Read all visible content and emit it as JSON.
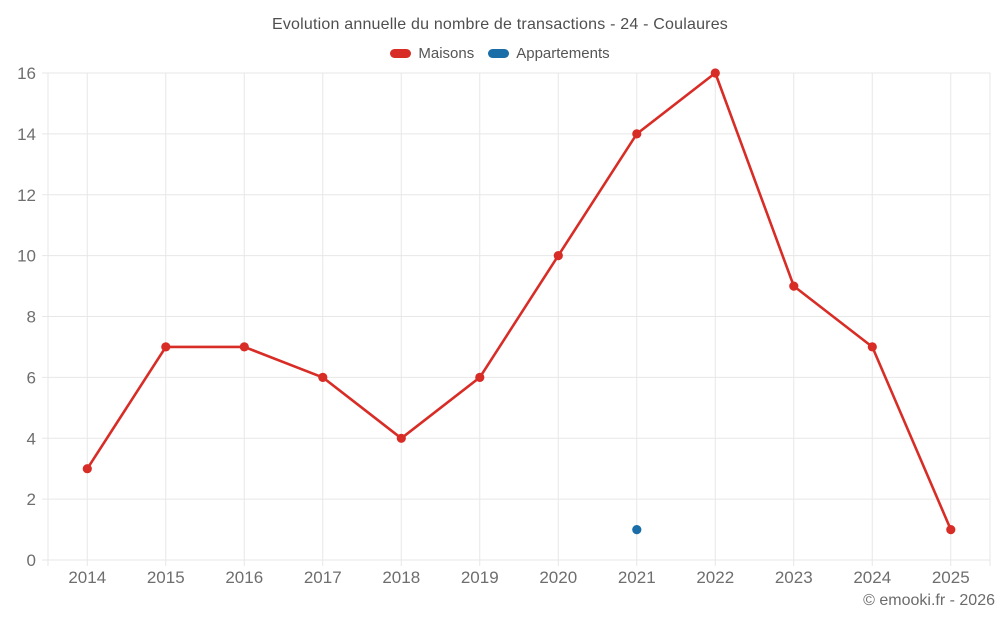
{
  "title": "Evolution annuelle du nombre de transactions - 24 - Coulaures",
  "footer": "© emooki.fr - 2026",
  "colors": {
    "maisons": "#d82d26",
    "appartements": "#1a6da6",
    "grid": "#e7e7e7",
    "axis_label": "#6e6e6e",
    "title_text": "#4f4f4f",
    "legend_text": "#555555",
    "footer_text": "#6b6b6b",
    "background": "#ffffff"
  },
  "chart_data": {
    "type": "line",
    "title": "Evolution annuelle du nombre de transactions - 24 - Coulaures",
    "categories": [
      "2014",
      "2015",
      "2016",
      "2017",
      "2018",
      "2019",
      "2020",
      "2021",
      "2022",
      "2023",
      "2024",
      "2025"
    ],
    "series": [
      {
        "name": "Maisons",
        "color": "#d82d26",
        "style": "line-markers",
        "values": [
          3,
          7,
          7,
          6,
          4,
          6,
          10,
          14,
          16,
          9,
          7,
          1
        ]
      },
      {
        "name": "Appartements",
        "color": "#1a6da6",
        "style": "markers-only",
        "values": [
          null,
          null,
          null,
          null,
          null,
          null,
          null,
          1,
          null,
          null,
          null,
          null
        ]
      }
    ],
    "xlabel": "",
    "ylabel": "",
    "ylim": [
      0,
      16
    ],
    "yticks": [
      0,
      2,
      4,
      6,
      8,
      10,
      12,
      14,
      16
    ],
    "grid": true,
    "legend_position": "top"
  }
}
